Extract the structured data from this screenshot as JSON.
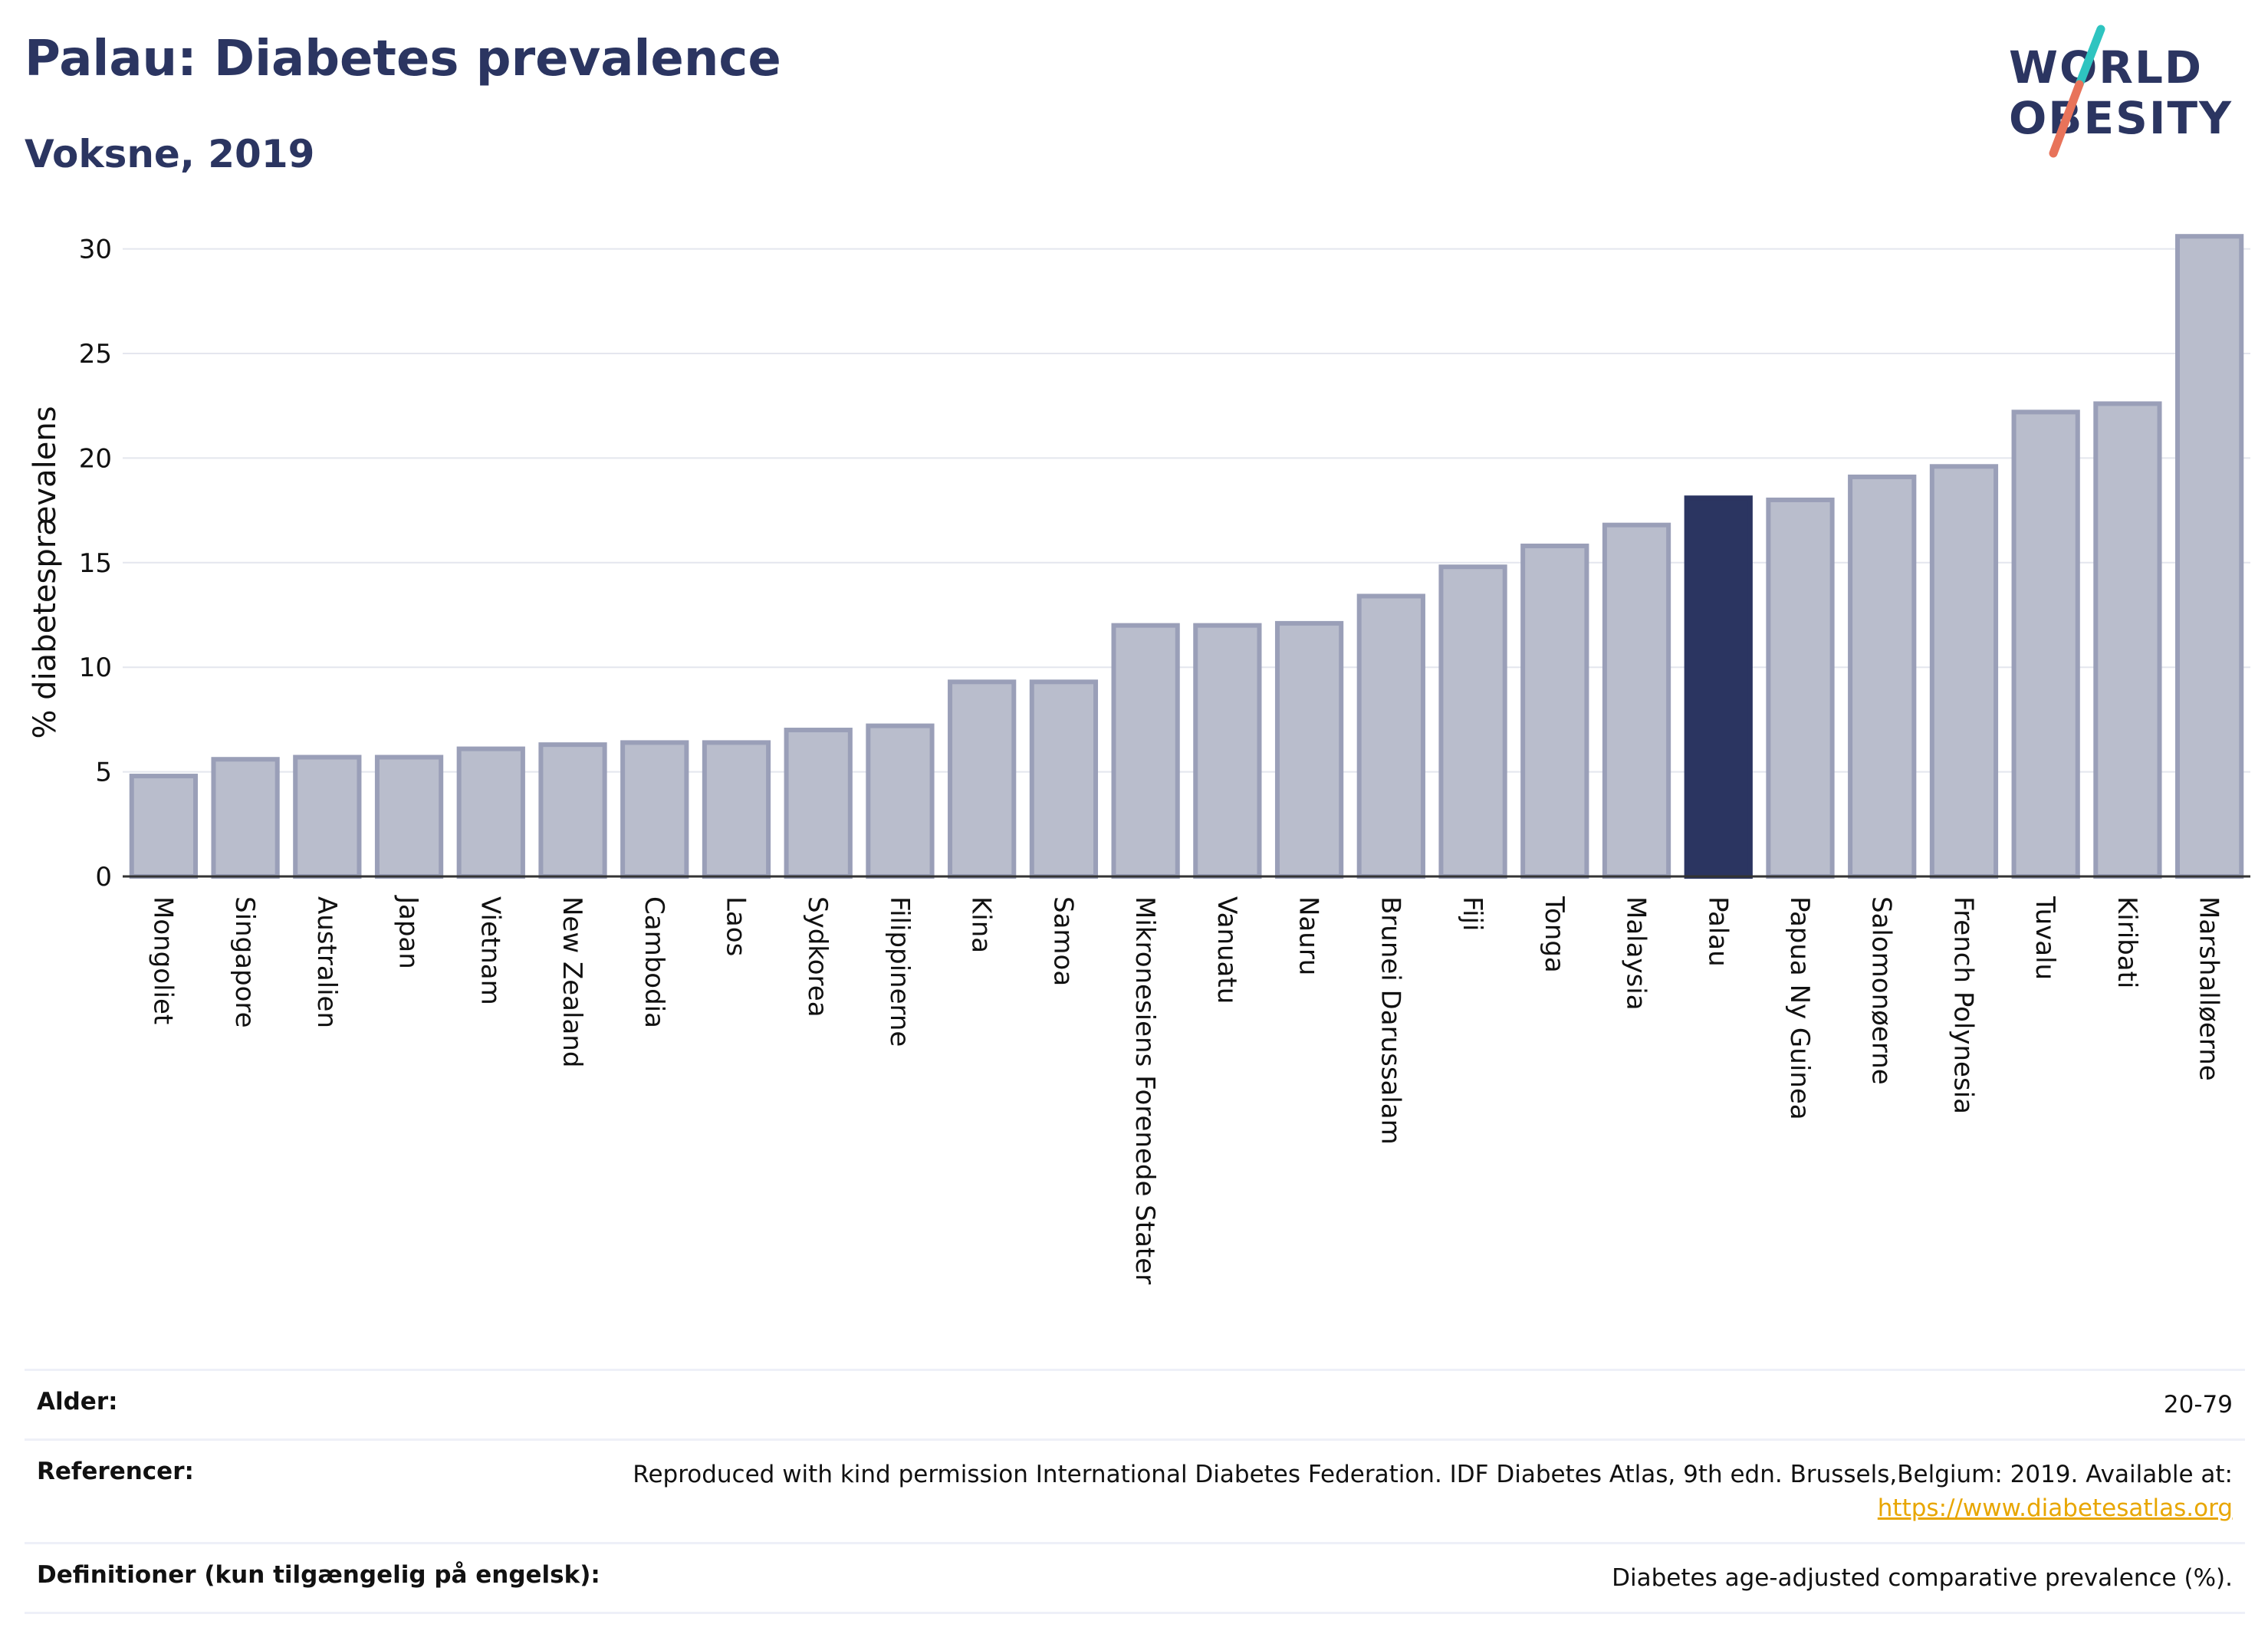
{
  "header": {
    "title": "Palau: Diabetes prevalence",
    "subtitle": "Voksne, 2019"
  },
  "logo": {
    "line1": "WORLD",
    "line2": "OBESITY",
    "slash_colors": [
      "#2ec4c0",
      "#e8735a"
    ]
  },
  "chart_data": {
    "type": "bar",
    "ylabel": "% diabetesprævalens",
    "xlabel": "",
    "ylim": [
      0,
      32
    ],
    "yticks": [
      0,
      5,
      10,
      15,
      20,
      25,
      30
    ],
    "grid": true,
    "highlight": "Palau",
    "colors": {
      "bar": "#b9bdcc",
      "bar_border": "#9a9fb8",
      "highlight": "#2b3561"
    },
    "categories": [
      "Mongoliet",
      "Singapore",
      "Australien",
      "Japan",
      "Vietnam",
      "New Zealand",
      "Cambodia",
      "Laos",
      "Sydkorea",
      "Filippinerne",
      "Kina",
      "Samoa",
      "Mikronesiens Forenede Stater",
      "Vanuatu",
      "Nauru",
      "Brunei Darussalam",
      "Fiji",
      "Tonga",
      "Malaysia",
      "Palau",
      "Papua Ny Guinea",
      "Salomonøerne",
      "French Polynesia",
      "Tuvalu",
      "Kiribati",
      "Marshalløerne"
    ],
    "values": [
      4.8,
      5.6,
      5.7,
      5.7,
      6.1,
      6.3,
      6.4,
      6.4,
      7.0,
      7.2,
      9.3,
      9.3,
      12.0,
      12.0,
      12.1,
      13.4,
      14.8,
      15.8,
      16.8,
      18.1,
      18.0,
      19.1,
      19.6,
      22.2,
      22.6,
      30.6
    ]
  },
  "meta": {
    "age_label": "Alder:",
    "age_value": "20-79",
    "ref_label": "Referencer:",
    "ref_text": "Reproduced with kind permission International Diabetes Federation. IDF Diabetes Atlas, 9th edn. Brussels,Belgium: 2019. Available at:",
    "ref_link": "https://www.diabetesatlas.org",
    "def_label": "Definitioner (kun tilgængelig på engelsk):",
    "def_value": "Diabetes age-adjusted comparative prevalence (%)."
  }
}
